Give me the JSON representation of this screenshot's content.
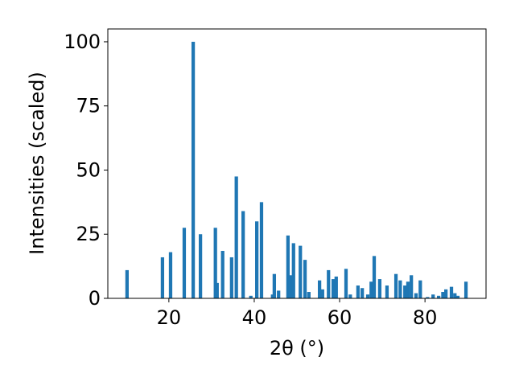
{
  "chart_data": {
    "type": "bar",
    "xlabel": "2θ (°)",
    "ylabel": "Intensities (scaled)",
    "color": "#1f77b4",
    "bar_width": 0.8,
    "x": [
      10.2,
      18.5,
      20.4,
      23.6,
      25.7,
      27.4,
      30.9,
      31.3,
      32.6,
      34.7,
      35.8,
      37.4,
      39.2,
      40.6,
      41.7,
      44.3,
      44.7,
      45.7,
      47.9,
      48.7,
      49.2,
      50.8,
      51.9,
      52.8,
      55.3,
      56.0,
      57.4,
      58.5,
      59.2,
      61.5,
      62.5,
      64.3,
      65.3,
      66.6,
      67.4,
      68.1,
      69.4,
      71.1,
      73.2,
      74.2,
      75.3,
      76.0,
      76.8,
      77.9,
      78.9,
      80.6,
      81.9,
      83.2,
      84.2,
      84.9,
      86.2,
      87.0,
      87.7,
      89.6
    ],
    "values": [
      11,
      16,
      18,
      27.5,
      100,
      25,
      27.5,
      6,
      18.5,
      16,
      47.5,
      34,
      1,
      30,
      37.5,
      1.5,
      9.5,
      3,
      24.5,
      9,
      21.5,
      20.5,
      15,
      2.5,
      7,
      3.5,
      11,
      7.5,
      8.5,
      11.5,
      1.5,
      5,
      4,
      1.5,
      6.5,
      16.5,
      7.5,
      5,
      9.5,
      7,
      5,
      6.5,
      9,
      2,
      7,
      0.5,
      1.5,
      1,
      2.5,
      3.5,
      4.5,
      2,
      1,
      6.5
    ],
    "xlim": [
      5.7,
      94.3
    ],
    "ylim": [
      0,
      105
    ],
    "xticks": [
      20,
      40,
      60,
      80
    ],
    "yticks": [
      0,
      25,
      50,
      75,
      100
    ],
    "grid": false
  }
}
